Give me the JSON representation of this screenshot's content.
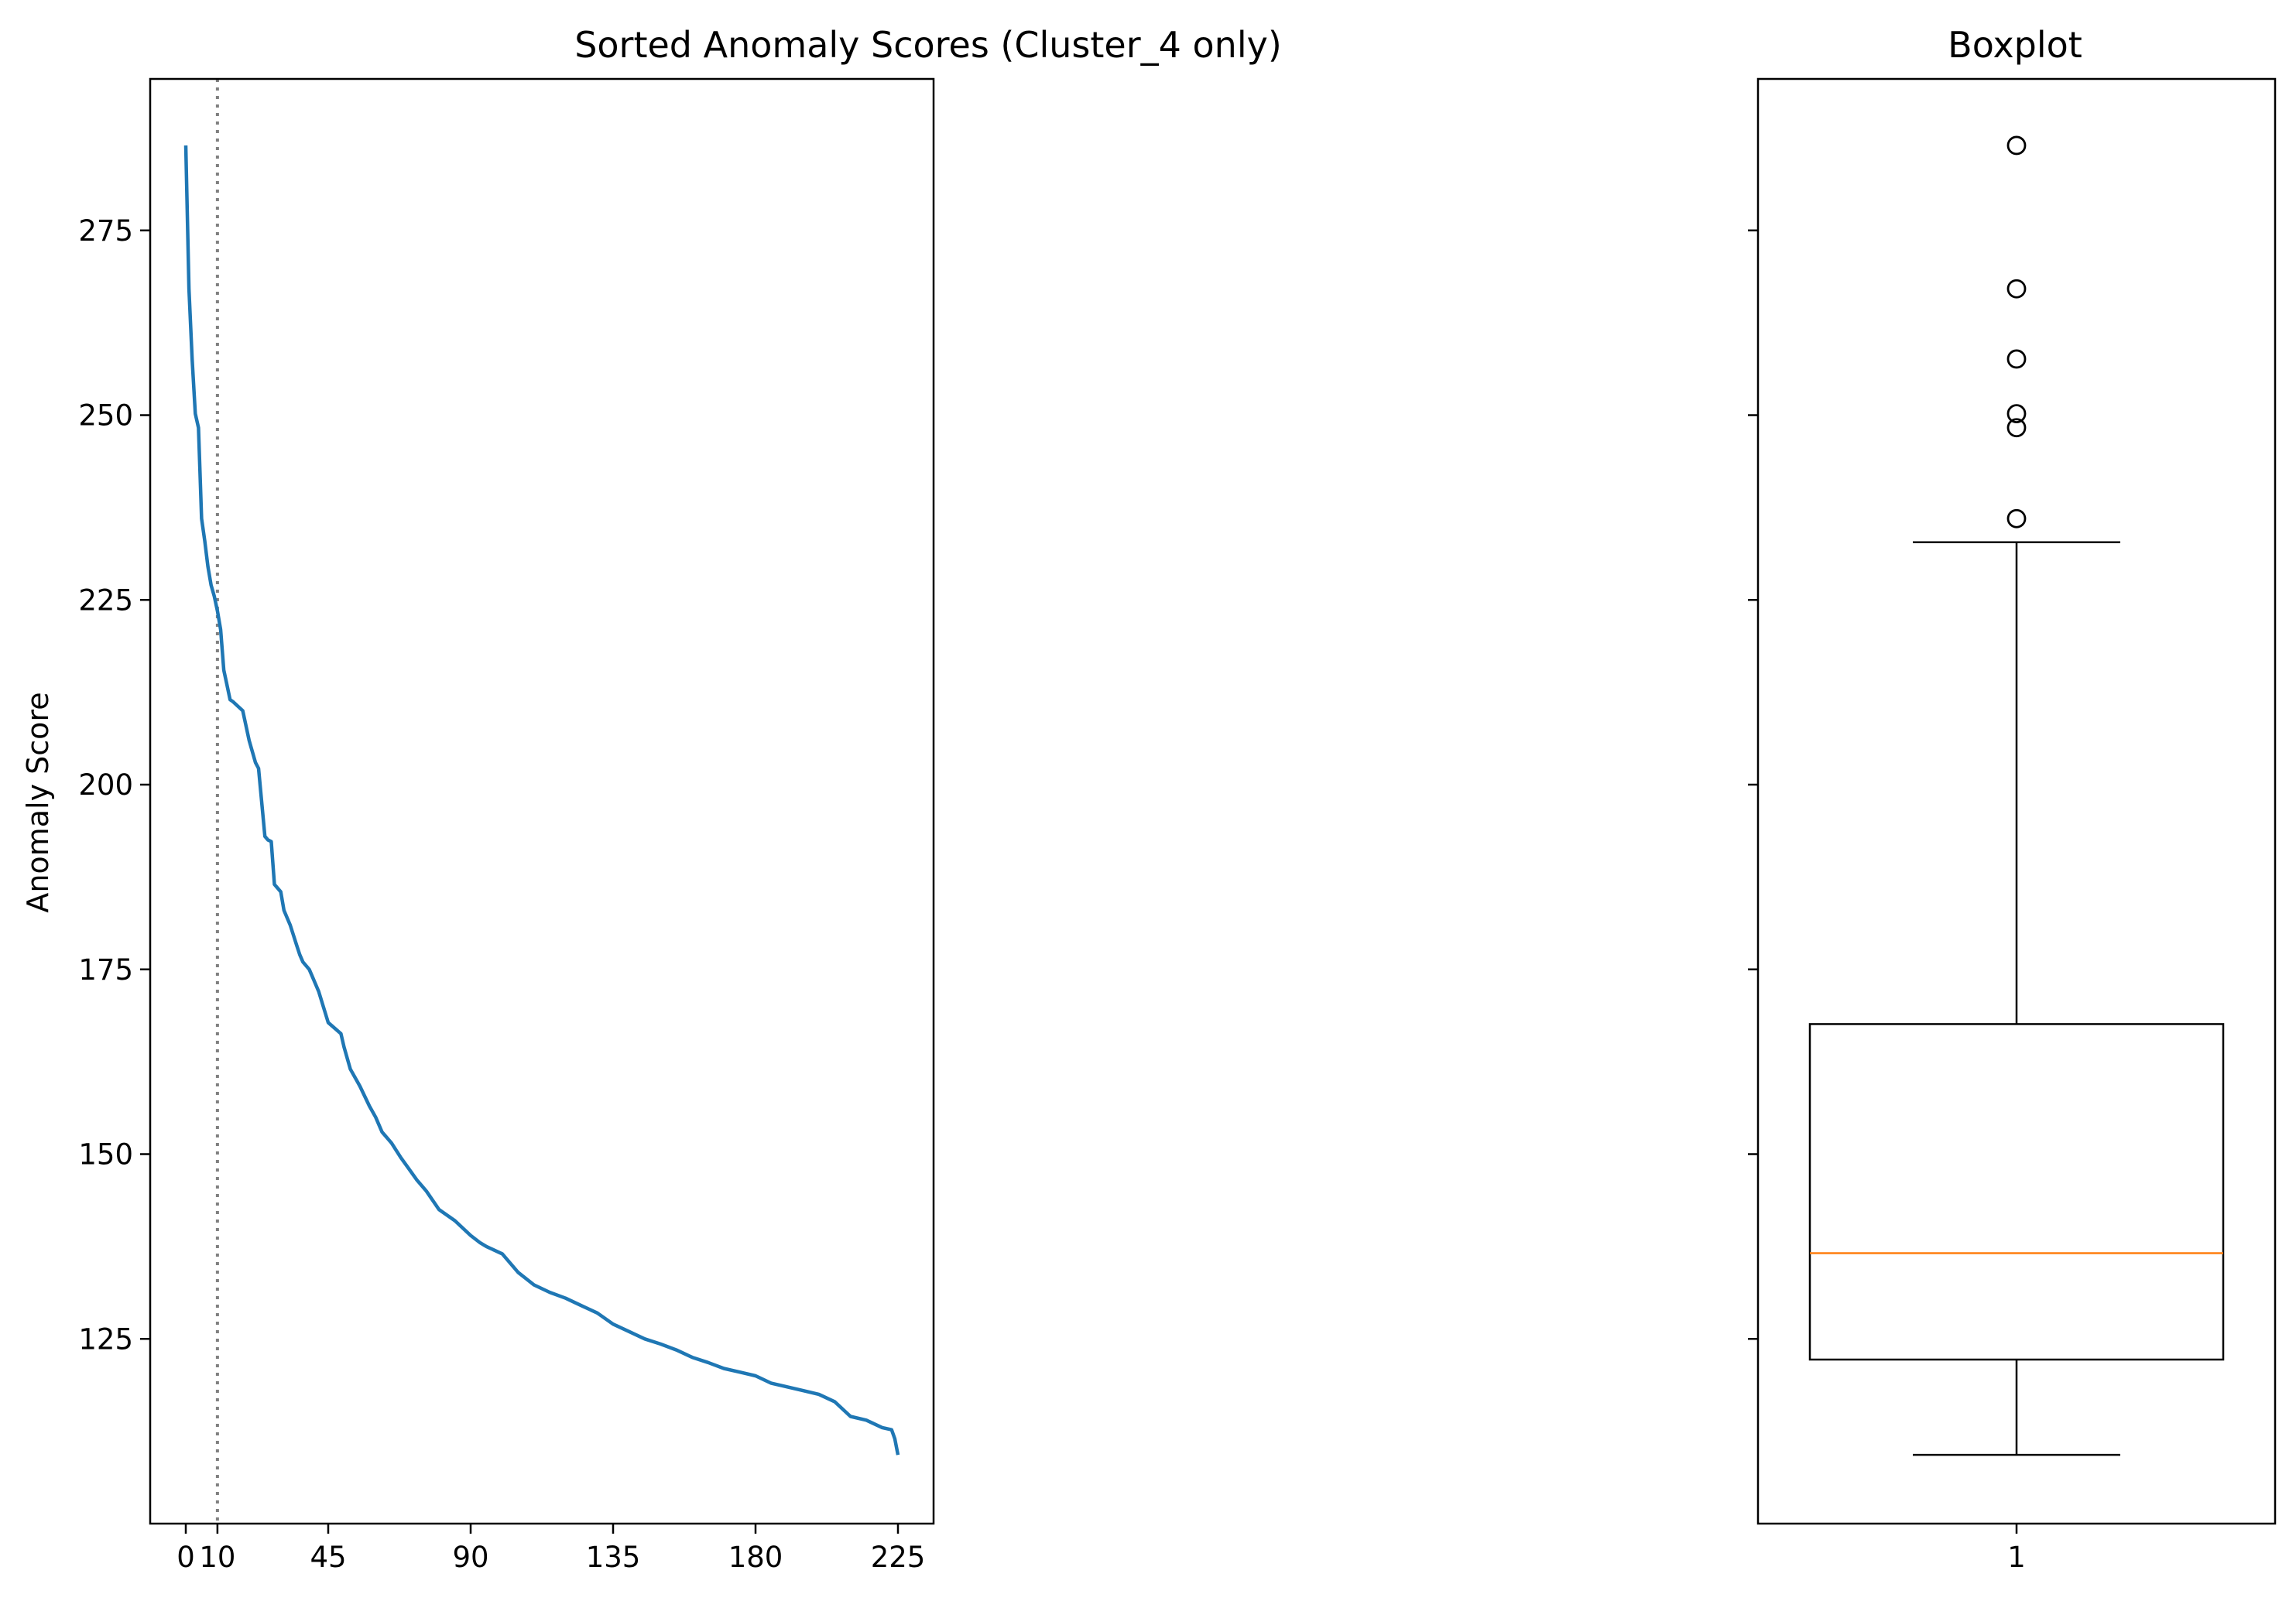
{
  "chart_data": [
    {
      "type": "line",
      "title": "Sorted Anomaly Scores (Cluster_4 only)",
      "xlabel": "",
      "ylabel": "Anomaly Score",
      "xlim": [
        -11.25,
        236.25
      ],
      "ylim": [
        100,
        295.5
      ],
      "xticks": [
        0,
        10,
        45,
        90,
        135,
        180,
        225
      ],
      "yticks": [
        125,
        150,
        175,
        200,
        225,
        250,
        275
      ],
      "grid": false,
      "line_color": "#1f77b4",
      "vline": {
        "x": 10,
        "style": "dotted",
        "color": "#808080"
      },
      "series_keypoints": {
        "x": [
          0,
          1,
          2,
          3,
          4,
          5,
          6,
          7,
          8,
          9,
          10,
          11,
          12,
          13,
          14,
          15,
          18,
          20,
          22,
          23,
          25,
          26,
          27,
          28,
          30,
          31,
          32,
          33,
          35,
          36,
          37,
          39,
          40,
          42,
          45,
          49,
          50,
          52,
          55,
          58,
          60,
          62,
          65,
          68,
          70,
          73,
          76,
          80,
          85,
          90,
          93,
          95,
          100,
          105,
          110,
          115,
          120,
          125,
          130,
          135,
          140,
          145,
          150,
          155,
          160,
          165,
          170,
          175,
          180,
          185,
          190,
          195,
          200,
          205,
          210,
          215,
          220,
          223,
          224,
          225
        ],
        "y": [
          286.5,
          267.1,
          257.6,
          250.2,
          248.3,
          236.0,
          233.0,
          229.5,
          227.0,
          225.5,
          223.5,
          221.0,
          215.5,
          213.5,
          211.5,
          211.2,
          210.0,
          206.0,
          203.0,
          202.2,
          193.0,
          192.5,
          192.3,
          186.5,
          185.5,
          183.0,
          182.0,
          181.0,
          178.3,
          177.0,
          176.0,
          175.0,
          174.0,
          172.0,
          167.8,
          166.3,
          164.5,
          161.5,
          159.2,
          156.5,
          155.0,
          153.0,
          151.5,
          149.5,
          148.3,
          146.5,
          145.0,
          142.5,
          141.0,
          139.0,
          138.0,
          137.5,
          136.5,
          134.0,
          132.3,
          131.3,
          130.5,
          129.5,
          128.5,
          127.0,
          126.0,
          125.0,
          124.3,
          123.5,
          122.5,
          121.8,
          121.0,
          120.5,
          120.0,
          119.0,
          118.5,
          118.0,
          117.5,
          116.5,
          114.5,
          114.0,
          113.0,
          112.7,
          111.5,
          109.3
        ]
      }
    },
    {
      "type": "box",
      "title": "Boxplot",
      "xticks": [
        "1"
      ],
      "ylim": [
        100,
        295.5
      ],
      "stats": {
        "whisker_low": 109.3,
        "q1": 122.2,
        "median": 136.6,
        "q3": 167.6,
        "whisker_high": 232.8
      },
      "outliers": [
        286.5,
        267.1,
        257.6,
        250.2,
        248.3,
        236.0
      ],
      "median_color": "#ff7f0e"
    }
  ]
}
